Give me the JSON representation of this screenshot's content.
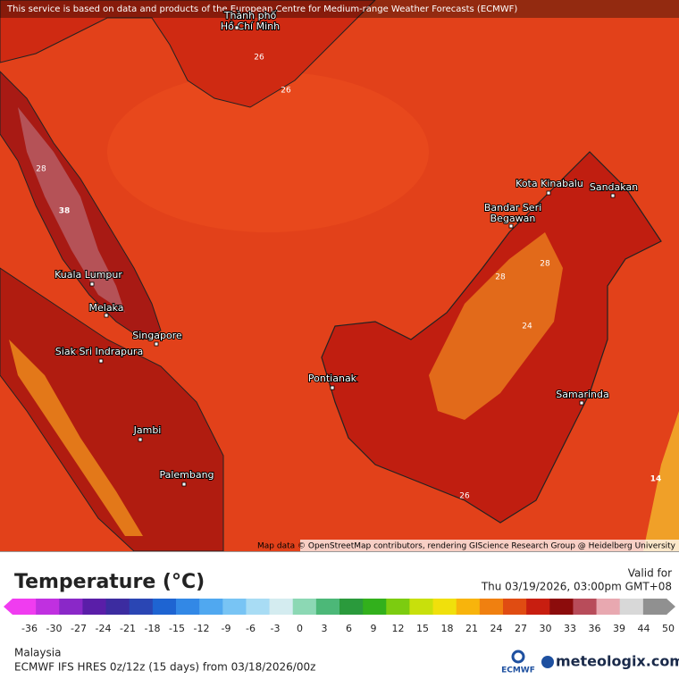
{
  "map": {
    "attribution": "This service is based on data and products of the European Centre for Medium-range Weather Forecasts (ECMWF)",
    "credit": "Map data © OpenStreetMap contributors, rendering GIScience Research Group @ Heidelberg University",
    "cities": [
      [
        "Thành phố",
        "Hồ Chí Minh"
      ],
      [
        "Kota Kinabalu"
      ],
      [
        "Sandakan"
      ],
      [
        "Bandar Seri",
        "Begawan"
      ],
      [
        "Kuala Lumpur"
      ],
      [
        "Melaka"
      ],
      [
        "Singapore"
      ],
      [
        "Siak Sri Indrapura"
      ],
      [
        "Pontianak"
      ],
      [
        "Samarinda"
      ],
      [
        "Jambi"
      ],
      [
        "Palembang"
      ]
    ],
    "contour_labels": [
      "38",
      "14",
      "26",
      "26",
      "28",
      "28",
      "24",
      "26",
      "28"
    ]
  },
  "legend": {
    "title": "Temperature (°C)",
    "valid_label": "Valid for",
    "valid_time": "Thu 03/19/2026, 03:00pm GMT+08",
    "ticks": [
      -36,
      -30,
      -27,
      -24,
      -21,
      -18,
      -15,
      -12,
      -9,
      -6,
      -3,
      0,
      3,
      6,
      9,
      12,
      15,
      18,
      21,
      24,
      27,
      30,
      33,
      36,
      39,
      44,
      50
    ],
    "colors": [
      "#f03cf0",
      "#c030e0",
      "#8a28c8",
      "#5a1ea8",
      "#3c2ca0",
      "#2a46b4",
      "#1e64d2",
      "#3288e6",
      "#50a8f0",
      "#78c4f4",
      "#a8dcf4",
      "#d4ecf0",
      "#8cd8b4",
      "#4cb878",
      "#2a9a3c",
      "#32b01c",
      "#7ccc10",
      "#c8e00c",
      "#f0e00c",
      "#f8b40c",
      "#f08010",
      "#e04c12",
      "#c81e10",
      "#8c0c0c",
      "#b84c5a",
      "#e8a8b0",
      "#d8d8d8",
      "#909090"
    ]
  },
  "footer": {
    "region": "Malaysia",
    "model": "ECMWF IFS HRES 0z/12z (15 days) from  03/18/2026/00z",
    "ecmwf": "ECMWF",
    "brand": "meteologix.com"
  }
}
